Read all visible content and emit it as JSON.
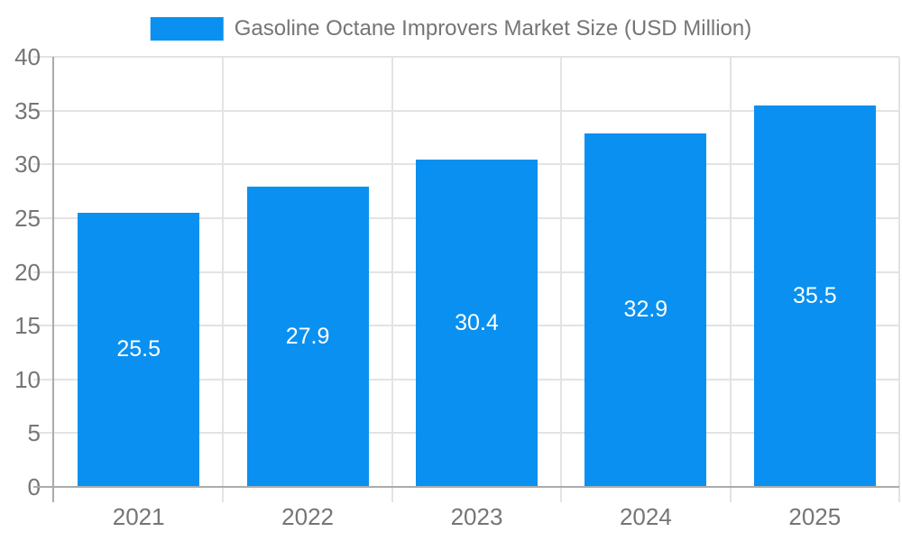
{
  "legend": {
    "label": "Gasoline Octane Improvers Market Size (USD Million)"
  },
  "colors": {
    "bar": "#0A90F0",
    "axis_text": "#757575",
    "grid": "#E3E3E3",
    "axis_line": "#ABABAB",
    "data_label": "#FFFFFF",
    "background": "#FFFFFF"
  },
  "chart_data": {
    "type": "bar",
    "title": "Gasoline Octane Improvers Market Size (USD Million)",
    "categories": [
      "2021",
      "2022",
      "2023",
      "2024",
      "2025"
    ],
    "series": [
      {
        "name": "Gasoline Octane Improvers Market Size (USD Million)",
        "values": [
          25.5,
          27.9,
          30.4,
          32.9,
          35.5
        ]
      }
    ],
    "data_labels": [
      "25.5",
      "27.9",
      "30.4",
      "32.9",
      "35.5"
    ],
    "xlabel": "",
    "ylabel": "",
    "ylim": [
      0,
      40
    ],
    "yticks": [
      0,
      5,
      10,
      15,
      20,
      25,
      30,
      35,
      40
    ],
    "grid": true,
    "legend_position": "top-center",
    "data_label_position": "inside-center"
  }
}
